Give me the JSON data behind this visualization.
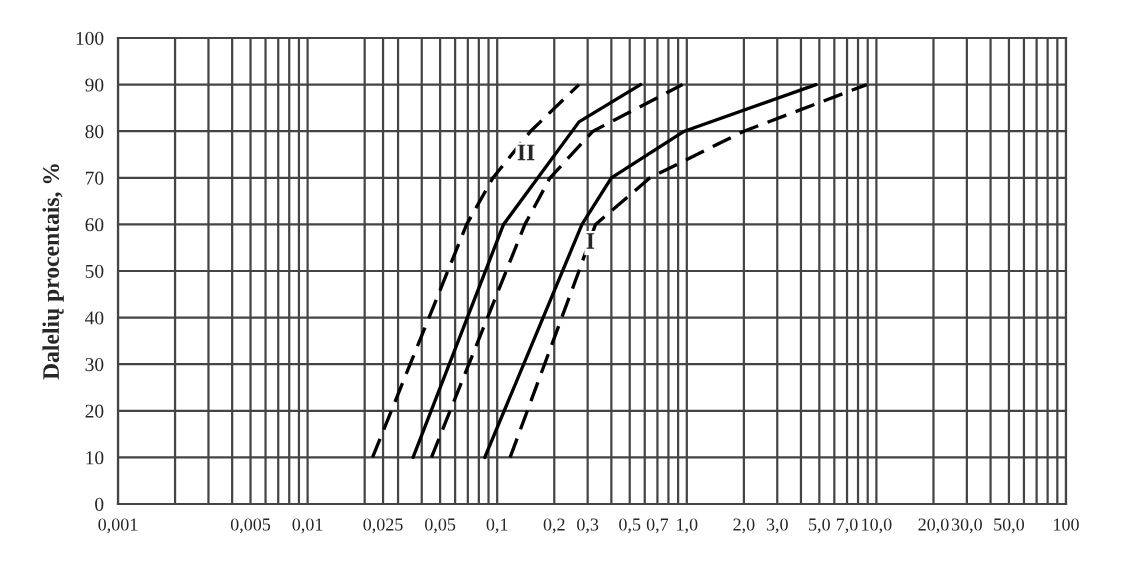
{
  "chart_data": {
    "type": "line",
    "ylabel": "Dalelių procentais, %",
    "log": "x",
    "xlim": [
      0.001,
      100
    ],
    "ylim": [
      0,
      100
    ],
    "yticks": [
      0,
      10,
      20,
      30,
      40,
      50,
      60,
      70,
      80,
      90,
      100
    ],
    "xticks": [
      {
        "value": 0.001,
        "label": "0,001"
      },
      {
        "value": 0.002,
        "label": null
      },
      {
        "value": 0.003,
        "label": null
      },
      {
        "value": 0.004,
        "label": null
      },
      {
        "value": 0.005,
        "label": "0,005"
      },
      {
        "value": 0.006,
        "label": null
      },
      {
        "value": 0.007,
        "label": null
      },
      {
        "value": 0.008,
        "label": null
      },
      {
        "value": 0.009,
        "label": null
      },
      {
        "value": 0.01,
        "label": "0,01"
      },
      {
        "value": 0.02,
        "label": null
      },
      {
        "value": 0.025,
        "label": "0,025"
      },
      {
        "value": 0.03,
        "label": null
      },
      {
        "value": 0.04,
        "label": null
      },
      {
        "value": 0.05,
        "label": "0,05"
      },
      {
        "value": 0.06,
        "label": null
      },
      {
        "value": 0.07,
        "label": null
      },
      {
        "value": 0.08,
        "label": null
      },
      {
        "value": 0.09,
        "label": null
      },
      {
        "value": 0.1,
        "label": "0,1"
      },
      {
        "value": 0.2,
        "label": "0,2"
      },
      {
        "value": 0.3,
        "label": "0,3"
      },
      {
        "value": 0.4,
        "label": null
      },
      {
        "value": 0.5,
        "label": "0,5"
      },
      {
        "value": 0.6,
        "label": null
      },
      {
        "value": 0.7,
        "label": "0,7"
      },
      {
        "value": 0.8,
        "label": null
      },
      {
        "value": 0.9,
        "label": null
      },
      {
        "value": 1.0,
        "label": "1,0"
      },
      {
        "value": 2.0,
        "label": "2,0"
      },
      {
        "value": 3.0,
        "label": "3,0"
      },
      {
        "value": 4.0,
        "label": null
      },
      {
        "value": 5.0,
        "label": "5,0"
      },
      {
        "value": 6.0,
        "label": null
      },
      {
        "value": 7.0,
        "label": "7,0"
      },
      {
        "value": 8.0,
        "label": null
      },
      {
        "value": 9.0,
        "label": null
      },
      {
        "value": 10.0,
        "label": "10,0"
      },
      {
        "value": 20.0,
        "label": "20,0"
      },
      {
        "value": 30.0,
        "label": "30,0"
      },
      {
        "value": 40.0,
        "label": null
      },
      {
        "value": 50.0,
        "label": "50,0"
      },
      {
        "value": 60.0,
        "label": null
      },
      {
        "value": 70.0,
        "label": null
      },
      {
        "value": 80.0,
        "label": null
      },
      {
        "value": 90.0,
        "label": null
      },
      {
        "value": 100.0,
        "label": "100"
      }
    ],
    "grid": true,
    "series": [
      {
        "color": "#000000",
        "line_style": "dashed",
        "x": [
          0.022,
          0.069,
          0.095,
          0.15,
          0.27
        ],
        "values": [
          10,
          60,
          70,
          80,
          90
        ]
      },
      {
        "color": "#000000",
        "line_style": "solid",
        "x": [
          0.036,
          0.108,
          0.27,
          0.57
        ],
        "values": [
          10,
          60,
          82,
          90
        ]
      },
      {
        "color": "#000000",
        "line_style": "dashed",
        "x": [
          0.045,
          0.14,
          0.19,
          0.32,
          0.95
        ],
        "values": [
          10,
          60,
          70,
          80,
          90
        ]
      },
      {
        "color": "#000000",
        "line_style": "solid",
        "x": [
          0.086,
          0.28,
          0.4,
          0.97,
          4.8
        ],
        "values": [
          10,
          60,
          70,
          80,
          90
        ]
      },
      {
        "color": "#000000",
        "line_style": "dashed",
        "x": [
          0.117,
          0.27,
          0.33,
          0.64,
          2.0,
          8.9
        ],
        "values": [
          10,
          50,
          60,
          70,
          80,
          90
        ]
      }
    ],
    "annotations": [
      {
        "text": "II",
        "x": 0.142,
        "y": 75
      },
      {
        "text": "I",
        "x": 0.31,
        "y": 56
      }
    ]
  }
}
